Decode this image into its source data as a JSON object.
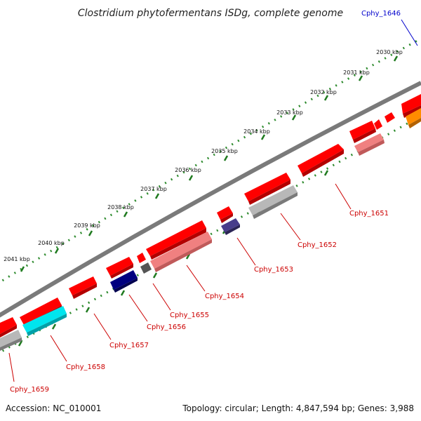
{
  "title": "Clostridium phytofermentans ISDg, complete genome",
  "footer": {
    "accession": "Accession: NC_010001",
    "summary": "Topology: circular; Length: 4,847,594 bp; Genes: 3,988"
  },
  "colors": {
    "backbone": "#7a7a7a",
    "tick_major": "#1f7a1f",
    "tick_minor": "#2e8b2e",
    "label_red": "#cc0000",
    "label_blue": "#0000cc",
    "gene_red": "#ff0000",
    "gene_pink": "#f08080",
    "gene_gray": "#b8b8b8",
    "gene_darkgray": "#555555",
    "gene_navy": "#000080",
    "gene_slate": "#483d8b",
    "gene_cyan": "#00e5ee",
    "gene_orange": "#ff8c00"
  },
  "ticks": [
    {
      "label": "2030 kbp"
    },
    {
      "label": "2031 kbp"
    },
    {
      "label": "2032 kbp"
    },
    {
      "label": "2033 kbp"
    },
    {
      "label": "2034 kbp"
    },
    {
      "label": "2035 kbp"
    },
    {
      "label": "2036 kbp"
    },
    {
      "label": "2037 kbp"
    },
    {
      "label": "2038 kbp"
    },
    {
      "label": "2039 kbp"
    },
    {
      "label": "2040 kbp"
    },
    {
      "label": "2041 kbp"
    }
  ],
  "gene_labels": [
    {
      "text": "Cphy_1646",
      "color": "label_blue"
    },
    {
      "text": "Cphy_1651",
      "color": "label_red"
    },
    {
      "text": "Cphy_1652",
      "color": "label_red"
    },
    {
      "text": "Cphy_1653",
      "color": "label_red"
    },
    {
      "text": "Cphy_1654",
      "color": "label_red"
    },
    {
      "text": "Cphy_1655",
      "color": "label_red"
    },
    {
      "text": "Cphy_1656",
      "color": "label_red"
    },
    {
      "text": "Cphy_1657",
      "color": "label_red"
    },
    {
      "text": "Cphy_1658",
      "color": "label_red"
    },
    {
      "text": "Cphy_1659",
      "color": "label_red"
    }
  ]
}
